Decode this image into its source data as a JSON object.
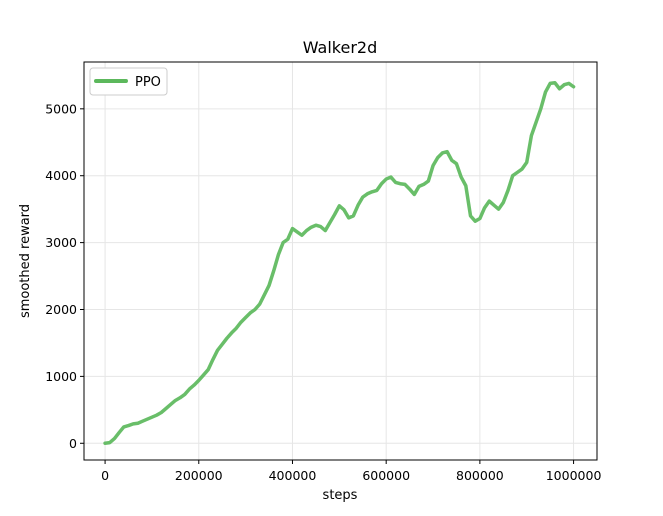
{
  "chart_data": {
    "type": "line",
    "title": "Walker2d",
    "xlabel": "steps",
    "ylabel": "smoothed reward",
    "xlim": [
      -45000,
      1050000
    ],
    "ylim": [
      -250,
      5700
    ],
    "xticks": [
      0,
      200000,
      400000,
      600000,
      800000,
      1000000
    ],
    "xtick_labels": [
      "0",
      "200000",
      "400000",
      "600000",
      "800000",
      "1000000"
    ],
    "yticks": [
      0,
      1000,
      2000,
      3000,
      4000,
      5000
    ],
    "ytick_labels": [
      "0",
      "1000",
      "2000",
      "3000",
      "4000",
      "5000"
    ],
    "grid": true,
    "legend_position": "top-left",
    "colors": {
      "PPO": "#5cb85c"
    },
    "series": [
      {
        "name": "PPO",
        "x": [
          0,
          10000,
          20000,
          30000,
          40000,
          50000,
          60000,
          70000,
          80000,
          90000,
          100000,
          110000,
          120000,
          130000,
          140000,
          150000,
          160000,
          170000,
          180000,
          190000,
          200000,
          210000,
          220000,
          230000,
          240000,
          250000,
          260000,
          270000,
          280000,
          290000,
          300000,
          310000,
          320000,
          330000,
          340000,
          350000,
          360000,
          370000,
          380000,
          390000,
          400000,
          410000,
          420000,
          430000,
          440000,
          450000,
          460000,
          470000,
          480000,
          490000,
          500000,
          510000,
          520000,
          530000,
          540000,
          550000,
          560000,
          570000,
          580000,
          590000,
          600000,
          610000,
          620000,
          630000,
          640000,
          650000,
          660000,
          670000,
          680000,
          690000,
          700000,
          710000,
          720000,
          730000,
          740000,
          750000,
          760000,
          770000,
          780000,
          790000,
          800000,
          810000,
          820000,
          830000,
          840000,
          850000,
          860000,
          870000,
          880000,
          890000,
          900000,
          910000,
          920000,
          930000,
          940000,
          950000,
          960000,
          970000,
          980000,
          990000,
          1000000
        ],
        "values": [
          0,
          10,
          70,
          160,
          245,
          265,
          290,
          300,
          330,
          360,
          390,
          420,
          460,
          520,
          580,
          640,
          680,
          730,
          810,
          870,
          940,
          1020,
          1100,
          1250,
          1390,
          1480,
          1570,
          1650,
          1720,
          1810,
          1880,
          1950,
          2000,
          2080,
          2220,
          2360,
          2580,
          2820,
          3000,
          3050,
          3210,
          3160,
          3110,
          3180,
          3230,
          3260,
          3240,
          3180,
          3300,
          3420,
          3550,
          3490,
          3370,
          3400,
          3560,
          3680,
          3730,
          3760,
          3780,
          3880,
          3950,
          3980,
          3900,
          3880,
          3870,
          3800,
          3720,
          3840,
          3870,
          3920,
          4150,
          4270,
          4340,
          4360,
          4230,
          4180,
          3980,
          3850,
          3400,
          3320,
          3360,
          3520,
          3620,
          3560,
          3500,
          3600,
          3780,
          4000,
          4050,
          4100,
          4200,
          4600,
          4800,
          5000,
          5250,
          5380,
          5390,
          5300,
          5360,
          5380,
          5330
        ]
      }
    ]
  }
}
